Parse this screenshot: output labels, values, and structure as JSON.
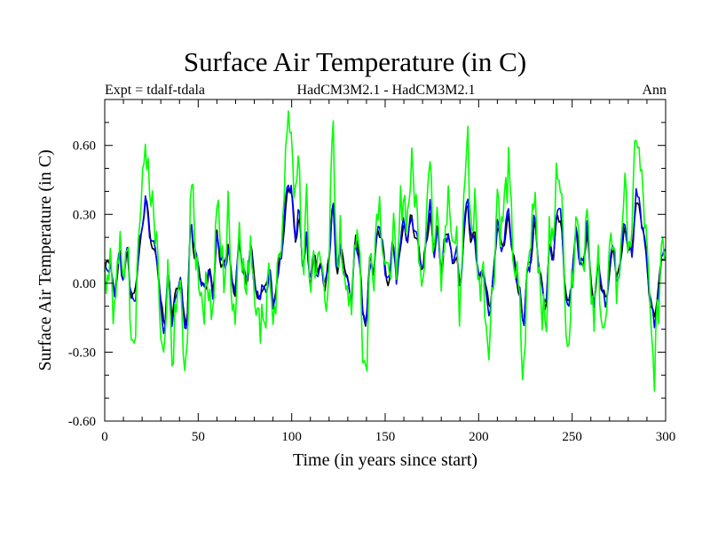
{
  "chart_data": {
    "type": "line",
    "title": "Surface Air Temperature (in C)",
    "subtitle_left": "Expt = tdalf-tdala",
    "subtitle_center": "HadCM3M2.1 - HadCM3M2.1",
    "subtitle_right": "Ann",
    "xlabel": "Time (in years since start)",
    "ylabel": "Surface Air Temperature (in C)",
    "xlim": [
      0,
      300
    ],
    "ylim": [
      -0.6,
      0.8
    ],
    "xticks": [
      0,
      50,
      100,
      150,
      200,
      250,
      300
    ],
    "xtick_labels": [
      "0",
      "50",
      "100",
      "150",
      "200",
      "250",
      "300"
    ],
    "yticks": [
      -0.6,
      -0.3,
      0.0,
      0.3,
      0.6
    ],
    "ytick_labels": [
      "-0.60",
      "-0.30",
      "0.00",
      "0.30",
      "0.60"
    ],
    "grid": false,
    "anchors": [
      [
        0,
        0.05
      ],
      [
        3,
        0.1
      ],
      [
        5,
        -0.05
      ],
      [
        8,
        0.12
      ],
      [
        10,
        0.02
      ],
      [
        12,
        0.15
      ],
      [
        14,
        -0.05
      ],
      [
        16,
        -0.08
      ],
      [
        18,
        0.12
      ],
      [
        20,
        0.24
      ],
      [
        22,
        0.37
      ],
      [
        24,
        0.22
      ],
      [
        26,
        0.16
      ],
      [
        28,
        0.1
      ],
      [
        30,
        -0.1
      ],
      [
        32,
        -0.18
      ],
      [
        34,
        0.05
      ],
      [
        36,
        -0.15
      ],
      [
        38,
        -0.05
      ],
      [
        40,
        0.03
      ],
      [
        42,
        -0.12
      ],
      [
        44,
        -0.2
      ],
      [
        46,
        0.3
      ],
      [
        48,
        0.12
      ],
      [
        50,
        0.08
      ],
      [
        52,
        -0.02
      ],
      [
        54,
        0.0
      ],
      [
        56,
        0.05
      ],
      [
        58,
        -0.05
      ],
      [
        60,
        0.22
      ],
      [
        62,
        0.1
      ],
      [
        64,
        0.05
      ],
      [
        66,
        0.18
      ],
      [
        68,
        0.02
      ],
      [
        70,
        -0.05
      ],
      [
        72,
        0.2
      ],
      [
        74,
        0.05
      ],
      [
        76,
        0.0
      ],
      [
        78,
        0.15
      ],
      [
        80,
        0.04
      ],
      [
        82,
        -0.08
      ],
      [
        84,
        -0.02
      ],
      [
        86,
        -0.05
      ],
      [
        88,
        0.08
      ],
      [
        90,
        -0.1
      ],
      [
        92,
        0.0
      ],
      [
        94,
        0.12
      ],
      [
        96,
        0.25
      ],
      [
        98,
        0.42
      ],
      [
        100,
        0.38
      ],
      [
        102,
        0.2
      ],
      [
        104,
        0.3
      ],
      [
        106,
        0.05
      ],
      [
        108,
        0.2
      ],
      [
        110,
        0.0
      ],
      [
        112,
        0.12
      ],
      [
        114,
        0.05
      ],
      [
        116,
        0.08
      ],
      [
        118,
        -0.02
      ],
      [
        120,
        0.1
      ],
      [
        122,
        0.38
      ],
      [
        124,
        0.05
      ],
      [
        126,
        0.14
      ],
      [
        128,
        0.08
      ],
      [
        130,
        0.02
      ],
      [
        132,
        -0.08
      ],
      [
        134,
        0.18
      ],
      [
        136,
        0.15
      ],
      [
        138,
        -0.12
      ],
      [
        140,
        -0.18
      ],
      [
        142,
        0.12
      ],
      [
        144,
        0.05
      ],
      [
        146,
        0.25
      ],
      [
        148,
        0.18
      ],
      [
        150,
        0.08
      ],
      [
        152,
        -0.02
      ],
      [
        154,
        0.2
      ],
      [
        156,
        0.0
      ],
      [
        158,
        0.18
      ],
      [
        160,
        0.25
      ],
      [
        162,
        0.18
      ],
      [
        164,
        0.3
      ],
      [
        166,
        0.22
      ],
      [
        168,
        0.15
      ],
      [
        170,
        0.03
      ],
      [
        172,
        0.2
      ],
      [
        174,
        0.3
      ],
      [
        176,
        0.12
      ],
      [
        178,
        0.25
      ],
      [
        180,
        0.05
      ],
      [
        182,
        0.18
      ],
      [
        184,
        0.22
      ],
      [
        186,
        0.08
      ],
      [
        188,
        0.15
      ],
      [
        190,
        -0.05
      ],
      [
        192,
        0.2
      ],
      [
        194,
        0.38
      ],
      [
        196,
        0.15
      ],
      [
        198,
        0.22
      ],
      [
        200,
        0.0
      ],
      [
        202,
        0.08
      ],
      [
        204,
        -0.05
      ],
      [
        206,
        -0.1
      ],
      [
        208,
        0.05
      ],
      [
        210,
        0.25
      ],
      [
        212,
        0.15
      ],
      [
        214,
        0.2
      ],
      [
        216,
        0.3
      ],
      [
        218,
        0.12
      ],
      [
        220,
        0.05
      ],
      [
        222,
        -0.05
      ],
      [
        224,
        -0.2
      ],
      [
        226,
        0.05
      ],
      [
        228,
        0.12
      ],
      [
        230,
        0.28
      ],
      [
        232,
        0.08
      ],
      [
        234,
        -0.02
      ],
      [
        236,
        -0.1
      ],
      [
        238,
        0.18
      ],
      [
        240,
        0.1
      ],
      [
        242,
        0.32
      ],
      [
        244,
        0.28
      ],
      [
        246,
        0.0
      ],
      [
        248,
        -0.1
      ],
      [
        250,
        0.02
      ],
      [
        252,
        0.22
      ],
      [
        254,
        0.12
      ],
      [
        256,
        0.06
      ],
      [
        258,
        0.25
      ],
      [
        260,
        -0.02
      ],
      [
        262,
        -0.08
      ],
      [
        264,
        0.1
      ],
      [
        266,
        -0.05
      ],
      [
        268,
        -0.08
      ],
      [
        270,
        0.05
      ],
      [
        272,
        0.18
      ],
      [
        274,
        -0.02
      ],
      [
        276,
        0.12
      ],
      [
        278,
        0.25
      ],
      [
        280,
        0.15
      ],
      [
        282,
        0.12
      ],
      [
        284,
        0.38
      ],
      [
        286,
        0.32
      ],
      [
        288,
        0.22
      ],
      [
        290,
        0.1
      ],
      [
        292,
        -0.1
      ],
      [
        294,
        -0.15
      ],
      [
        296,
        -0.05
      ],
      [
        298,
        0.15
      ],
      [
        300,
        0.1
      ]
    ],
    "series": [
      {
        "name": "black",
        "color": "#000000",
        "amp": 1.0,
        "jitter": 0.0
      },
      {
        "name": "blue",
        "color": "#0000ff",
        "amp": 1.05,
        "jitter": 0.02
      },
      {
        "name": "green",
        "color": "#00ff00",
        "amp": 1.9,
        "jitter": 0.11
      }
    ]
  }
}
